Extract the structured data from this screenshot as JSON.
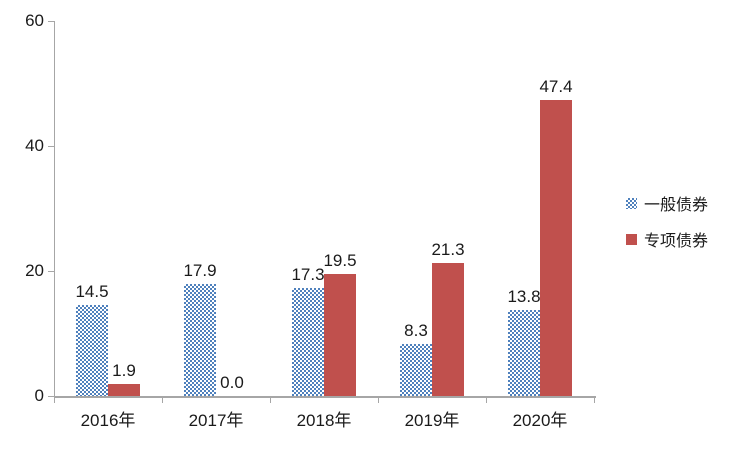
{
  "chart_data": {
    "type": "bar",
    "title": "",
    "xlabel": "",
    "ylabel": "",
    "categories": [
      "2016年",
      "2017年",
      "2018年",
      "2019年",
      "2020年"
    ],
    "series": [
      {
        "name": "一般债券",
        "color": "#4F81BD",
        "fill": "checker-pattern",
        "values": [
          14.5,
          17.9,
          17.3,
          8.3,
          13.8
        ]
      },
      {
        "name": "专项债券",
        "color": "#C0504D",
        "fill": "solid",
        "values": [
          1.9,
          0.0,
          19.5,
          21.3,
          47.4
        ]
      }
    ],
    "value_labels": [
      "14.5",
      "17.9",
      "17.3",
      "8.3",
      "13.8",
      "1.9",
      "0.0",
      "19.5",
      "21.3",
      "47.4"
    ],
    "value_label_decimals": 1,
    "ylim": [
      0,
      60
    ],
    "yticks": [
      "0",
      "20",
      "40",
      "60"
    ],
    "grid": false,
    "legend_position": "right"
  },
  "colors": {
    "axis": "#A6A6A6",
    "label_text": "#1A1A1A",
    "background": "#FFFFFF"
  }
}
